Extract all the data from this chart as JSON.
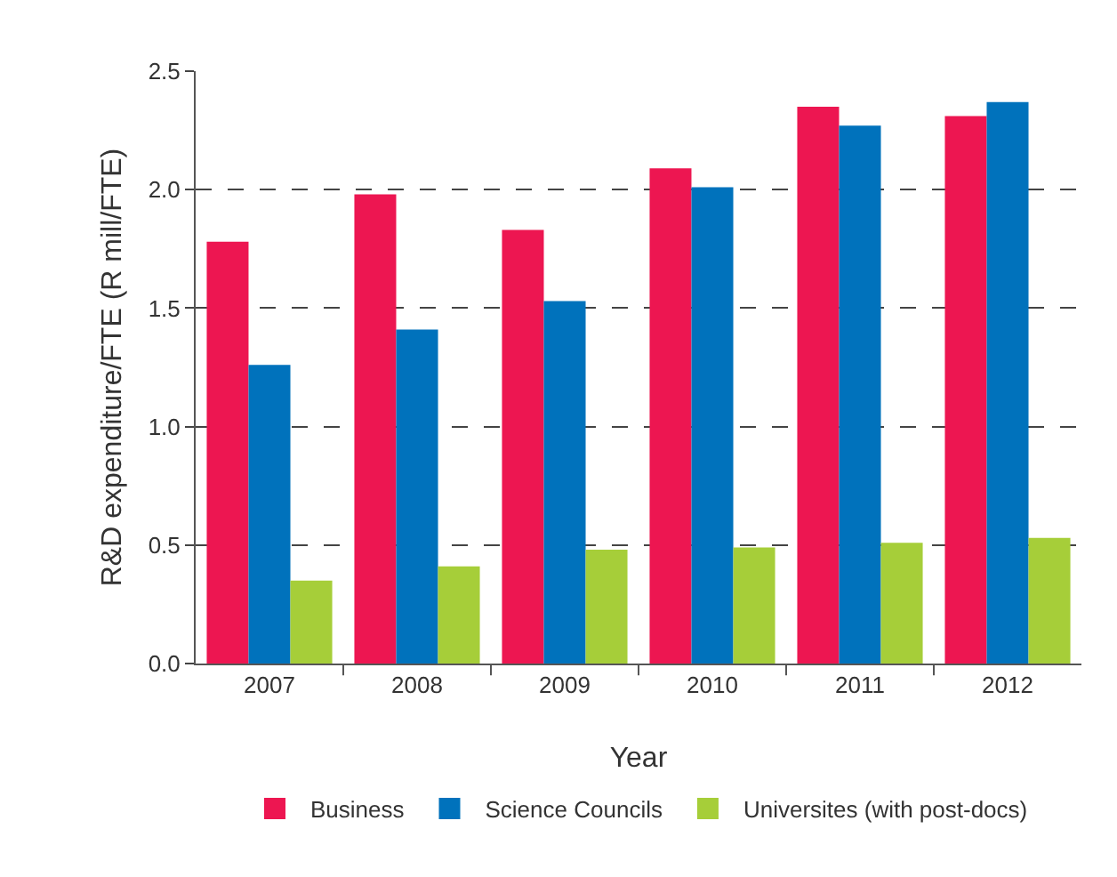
{
  "chart_data": {
    "type": "bar",
    "xlabel": "Year",
    "ylabel": "R&D expenditure/FTE (R mill/FTE)",
    "categories": [
      "2007",
      "2008",
      "2009",
      "2010",
      "2011",
      "2012"
    ],
    "series": [
      {
        "name": "Business",
        "color": "#ed1651",
        "values": [
          1.78,
          1.98,
          1.83,
          2.09,
          2.35,
          2.31
        ]
      },
      {
        "name": "Science Councils",
        "color": "#0072bc",
        "values": [
          1.26,
          1.41,
          1.53,
          2.01,
          2.27,
          2.37
        ]
      },
      {
        "name": "Universites (with post-docs)",
        "color": "#a6ce39",
        "values": [
          0.35,
          0.41,
          0.48,
          0.49,
          0.51,
          0.53
        ]
      }
    ],
    "ylim": [
      0,
      2.5
    ],
    "yticks": [
      {
        "value": 0,
        "label": "0.0"
      },
      {
        "value": 0.5,
        "label": "0.5"
      },
      {
        "value": 1,
        "label": "1.0"
      },
      {
        "value": 1.5,
        "label": "1.5"
      },
      {
        "value": 2,
        "label": "2.0"
      },
      {
        "value": 2.5,
        "label": "2.5"
      }
    ],
    "grid": "y",
    "line_style": "dashed",
    "legend": "bottom"
  }
}
